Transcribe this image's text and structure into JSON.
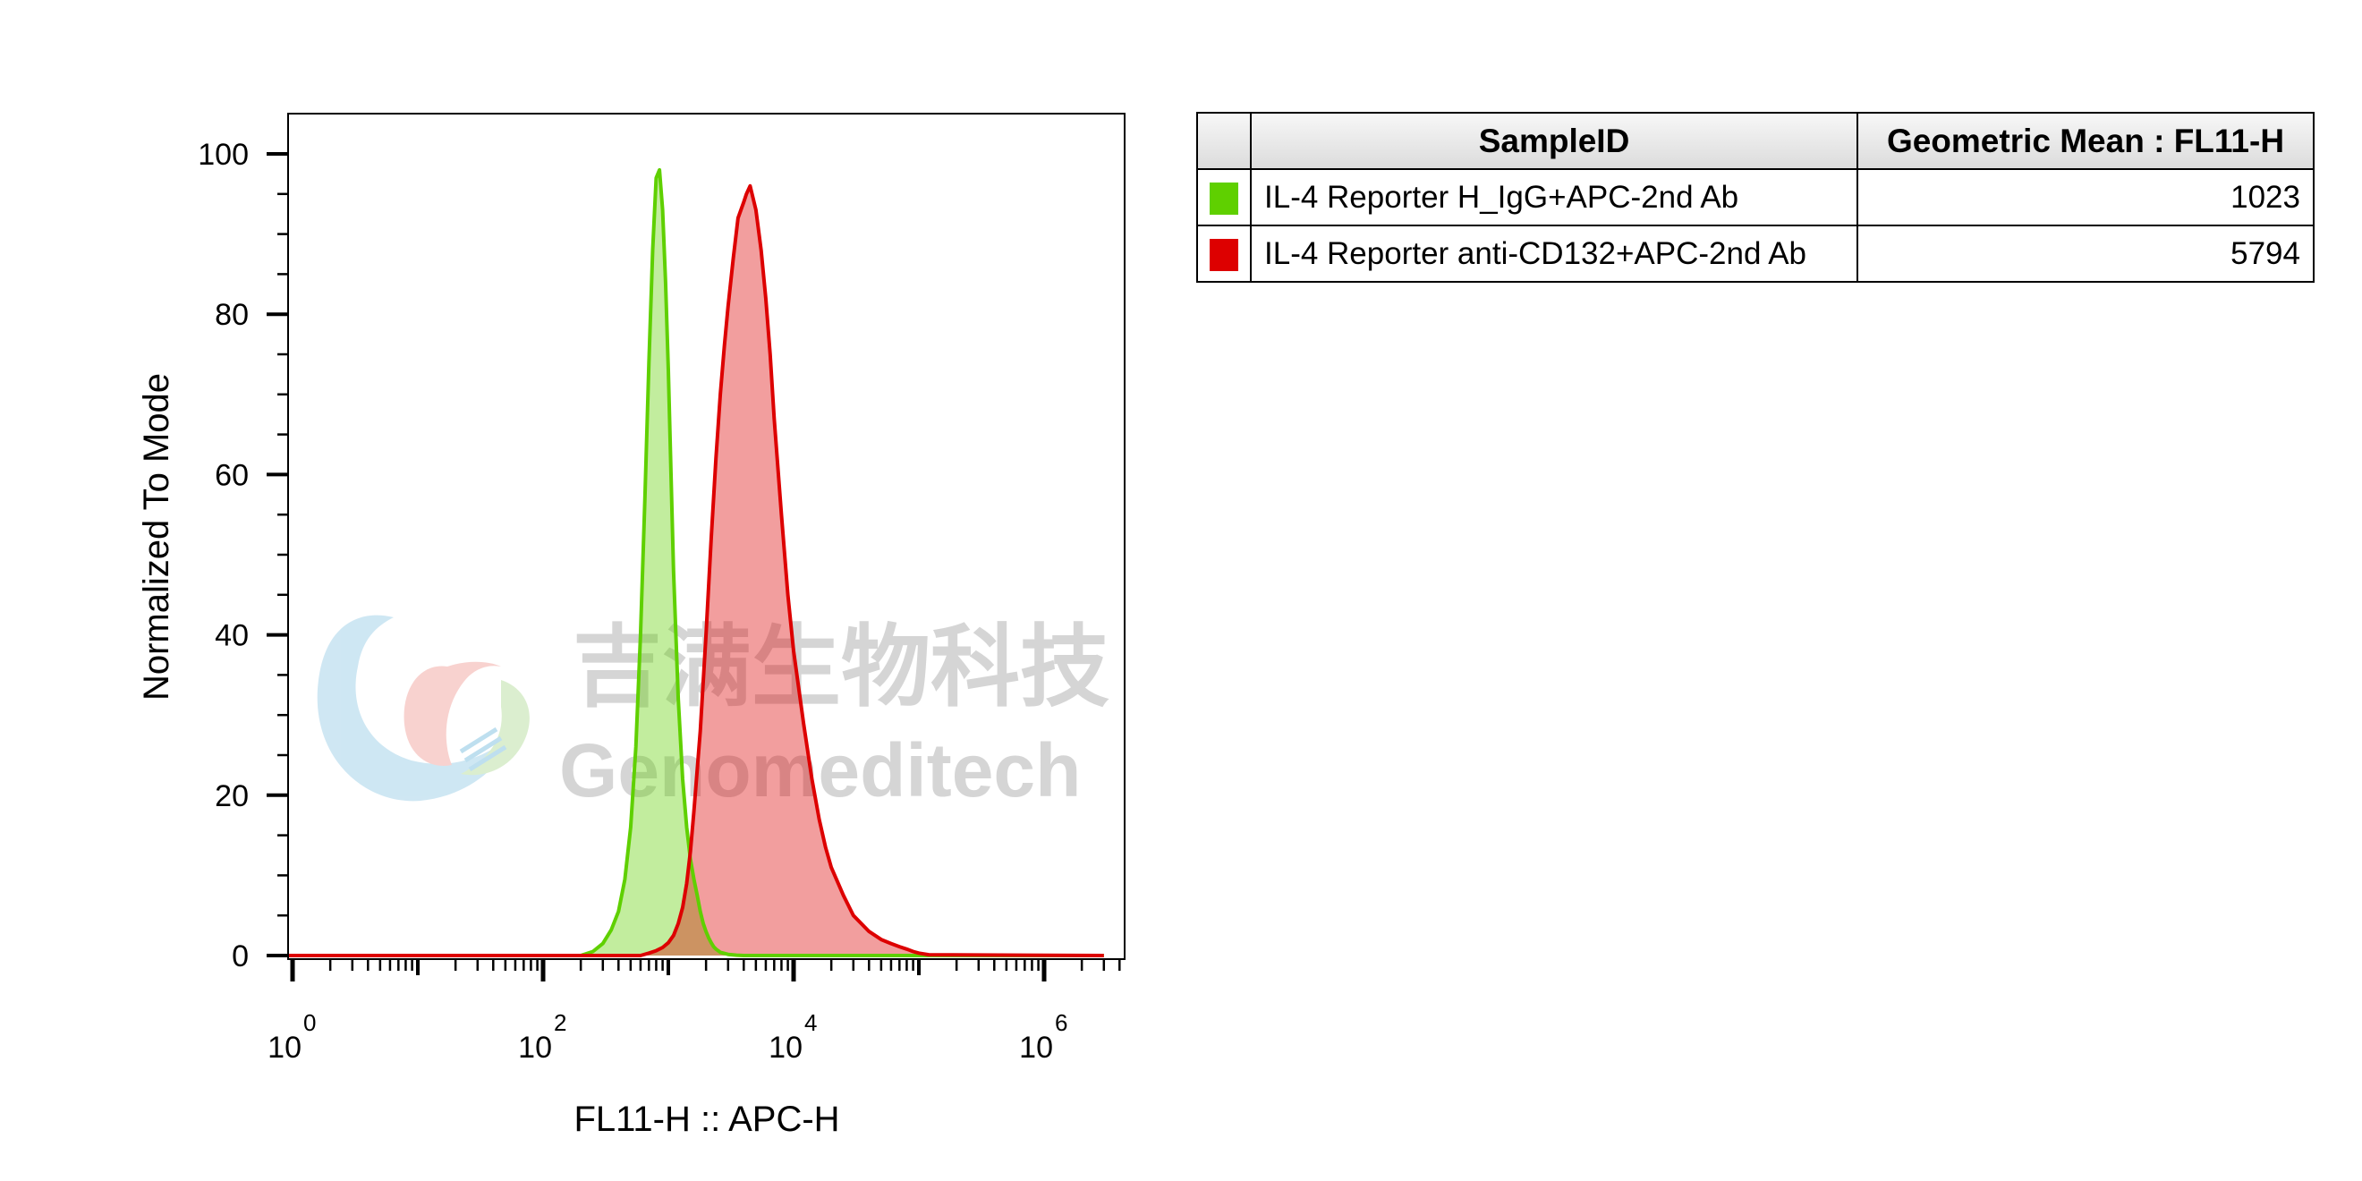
{
  "chart_data": {
    "type": "area",
    "xlabel": "FL11-H :: APC-H",
    "ylabel": "Normalized To Mode",
    "x_scale": "log",
    "xlim": [
      0.5,
      3000000
    ],
    "ylim": [
      0,
      100
    ],
    "x_ticks": [
      {
        "base": "10",
        "exp": "0"
      },
      {
        "base": "10",
        "exp": "2"
      },
      {
        "base": "10",
        "exp": "4"
      },
      {
        "base": "10",
        "exp": "6"
      }
    ],
    "y_ticks": [
      "0",
      "20",
      "40",
      "60",
      "80",
      "100"
    ],
    "series": [
      {
        "name": "IL-4 Reporter H_IgG+APC-2nd Ab",
        "color": "#5fd000",
        "x": [
          0.5,
          200,
          250,
          300,
          350,
          400,
          450,
          500,
          550,
          600,
          650,
          700,
          750,
          800,
          850,
          900,
          950,
          1000,
          1050,
          1100,
          1200,
          1300,
          1400,
          1500,
          1600,
          1700,
          1800,
          1900,
          2000,
          2100,
          2200,
          2300,
          2400,
          2600,
          3000,
          3500,
          4000,
          3000000
        ],
        "y": [
          0,
          0,
          0.5,
          1.5,
          3.2,
          5.5,
          9.5,
          16,
          26,
          40,
          57,
          74,
          88,
          97,
          98,
          93,
          84,
          73,
          60,
          48,
          32,
          22,
          16,
          12,
          9.5,
          7.5,
          5.5,
          4,
          3,
          2.2,
          1.6,
          1.1,
          0.8,
          0.4,
          0.15,
          0.05,
          0,
          0
        ]
      },
      {
        "name": "IL-4 Reporter anti-CD132+APC-2nd Ab",
        "color": "#dd0000",
        "x": [
          0.5,
          600,
          700,
          800,
          900,
          1000,
          1100,
          1200,
          1300,
          1400,
          1500,
          1600,
          1800,
          2000,
          2200,
          2400,
          2600,
          2800,
          3000,
          3300,
          3600,
          4000,
          4200,
          4500,
          5000,
          5500,
          6000,
          6500,
          7000,
          8000,
          9000,
          10000,
          12000,
          14000,
          16000,
          18000,
          20000,
          25000,
          30000,
          40000,
          50000,
          60000,
          70000,
          80000,
          90000,
          100000,
          120000,
          3000000
        ],
        "y": [
          0,
          0,
          0.3,
          0.6,
          1.0,
          1.6,
          2.5,
          4,
          6,
          9,
          13,
          18,
          28,
          40,
          52,
          62,
          70,
          76,
          81,
          87,
          92,
          94,
          95,
          96,
          93,
          88,
          82,
          75,
          67,
          55,
          45,
          38,
          29,
          22,
          17,
          13.5,
          11,
          7.5,
          5,
          3,
          2,
          1.5,
          1.1,
          0.8,
          0.5,
          0.3,
          0.1,
          0
        ]
      }
    ],
    "watermark": {
      "cn": "吉满生物科技",
      "en": "Genomeditech"
    }
  },
  "legend_table": {
    "headers": {
      "sample": "SampleID",
      "mean": "Geometric Mean : FL11-H"
    },
    "rows": [
      {
        "sample": "IL-4 Reporter H_IgG+APC-2nd Ab",
        "mean": "1023",
        "color": "#5fd000"
      },
      {
        "sample": "IL-4 Reporter anti-CD132+APC-2nd Ab",
        "mean": "5794",
        "color": "#dd0000"
      }
    ]
  }
}
